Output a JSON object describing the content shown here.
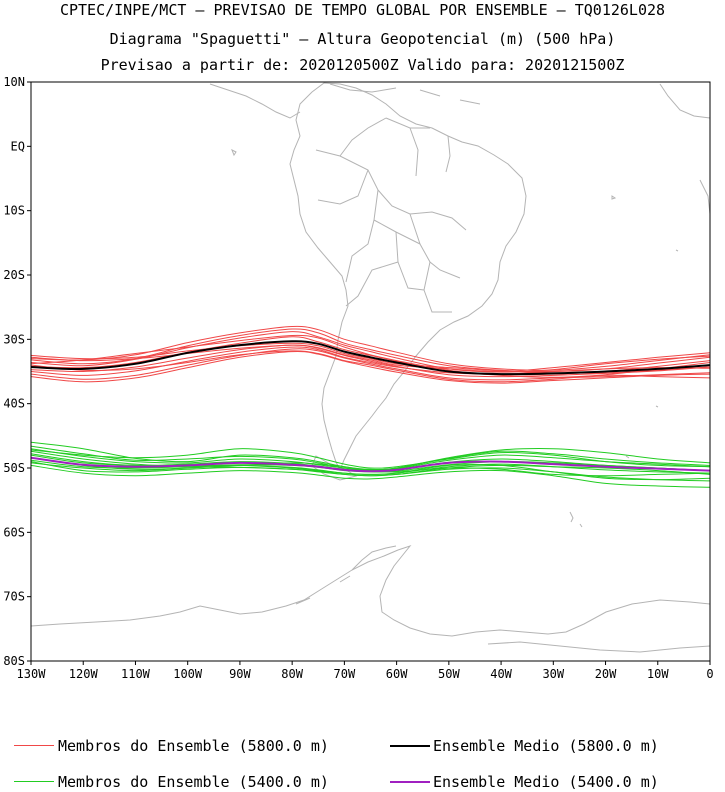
{
  "header": {
    "line1": "CPTEC/INPE/MCT — PREVISAO DE TEMPO GLOBAL POR ENSEMBLE — TQ0126L028",
    "line2": "Diagrama \"Spaguetti\" — Altura Geopotencial (m) (500 hPa)",
    "line3": "Previsao a partir de: 2020120500Z  Valido para: 2020121500Z"
  },
  "map": {
    "lon_range": [
      -130,
      0
    ],
    "lat_range": [
      -80,
      10
    ],
    "lat_ticks": [
      {
        "value": 10,
        "label": "10N"
      },
      {
        "value": 0,
        "label": "EQ"
      },
      {
        "value": -10,
        "label": "10S"
      },
      {
        "value": -20,
        "label": "20S"
      },
      {
        "value": -30,
        "label": "30S"
      },
      {
        "value": -40,
        "label": "40S"
      },
      {
        "value": -50,
        "label": "50S"
      },
      {
        "value": -60,
        "label": "60S"
      },
      {
        "value": -70,
        "label": "70S"
      },
      {
        "value": -80,
        "label": "80S"
      }
    ],
    "lon_ticks": [
      {
        "value": -130,
        "label": "130W"
      },
      {
        "value": -120,
        "label": "120W"
      },
      {
        "value": -110,
        "label": "110W"
      },
      {
        "value": -100,
        "label": "100W"
      },
      {
        "value": -90,
        "label": "90W"
      },
      {
        "value": -80,
        "label": "80W"
      },
      {
        "value": -70,
        "label": "70W"
      },
      {
        "value": -60,
        "label": "60W"
      },
      {
        "value": -50,
        "label": "50W"
      },
      {
        "value": -40,
        "label": "40W"
      },
      {
        "value": -30,
        "label": "30W"
      },
      {
        "value": -20,
        "label": "20W"
      },
      {
        "value": -10,
        "label": "10W"
      },
      {
        "value": 0,
        "label": "0"
      }
    ],
    "colors": {
      "coast": "#b4b4b4",
      "members_5800": "#f04848",
      "mean_5800": "#000000",
      "members_5400": "#22cc22",
      "mean_5400": "#a020c0"
    },
    "contour_lon": [
      -130,
      -120,
      -110,
      -100,
      -90,
      -80,
      -75,
      -70,
      -65,
      -60,
      -50,
      -40,
      -30,
      -20,
      -10,
      0
    ],
    "mean_5800": [
      -34.3,
      -34.6,
      -33.8,
      -32.1,
      -30.9,
      -30.3,
      -30.7,
      -31.9,
      -32.8,
      -33.6,
      -35.0,
      -35.4,
      -35.3,
      -35.0,
      -34.6,
      -34.0
    ],
    "members_5800": [
      [
        -33.0,
        -33.2,
        -32.4,
        -30.5,
        -29.0,
        -28.0,
        -28.5,
        -30.0,
        -31.0,
        -32.0,
        -33.8,
        -34.6,
        -34.8,
        -34.2,
        -33.3,
        -32.4
      ],
      [
        -33.6,
        -34.1,
        -33.1,
        -31.3,
        -29.8,
        -28.8,
        -29.6,
        -30.9,
        -31.9,
        -32.9,
        -34.6,
        -35.1,
        -34.7,
        -33.8,
        -33.1,
        -32.6
      ],
      [
        -34.2,
        -34.4,
        -33.6,
        -32.0,
        -30.6,
        -29.6,
        -30.4,
        -31.6,
        -32.5,
        -33.4,
        -35.0,
        -35.5,
        -35.4,
        -35.0,
        -34.2,
        -33.3
      ],
      [
        -34.7,
        -35.0,
        -34.3,
        -32.9,
        -31.6,
        -30.9,
        -31.4,
        -32.5,
        -33.4,
        -34.2,
        -35.5,
        -35.8,
        -35.6,
        -35.3,
        -34.9,
        -34.3
      ],
      [
        -35.4,
        -36.2,
        -35.6,
        -34.0,
        -32.5,
        -31.5,
        -31.8,
        -32.9,
        -33.8,
        -34.6,
        -36.0,
        -36.3,
        -36.0,
        -35.8,
        -35.5,
        -35.2
      ],
      [
        -32.5,
        -33.0,
        -32.8,
        -31.8,
        -31.0,
        -30.6,
        -31.0,
        -32.2,
        -33.0,
        -33.8,
        -34.4,
        -34.9,
        -35.2,
        -35.2,
        -34.8,
        -34.3
      ],
      [
        -33.8,
        -33.2,
        -32.2,
        -31.2,
        -30.2,
        -29.4,
        -29.8,
        -31.2,
        -32.4,
        -33.3,
        -34.8,
        -35.6,
        -35.9,
        -35.5,
        -34.6,
        -33.6
      ],
      [
        -35.0,
        -35.6,
        -34.9,
        -33.4,
        -32.0,
        -31.2,
        -31.6,
        -32.8,
        -33.6,
        -34.3,
        -35.2,
        -35.4,
        -35.0,
        -34.6,
        -34.4,
        -34.5
      ],
      [
        -34.0,
        -34.8,
        -34.6,
        -33.6,
        -32.4,
        -31.8,
        -32.2,
        -33.3,
        -34.0,
        -34.8,
        -36.2,
        -36.6,
        -36.2,
        -35.6,
        -35.8,
        -36.0
      ],
      [
        -33.2,
        -33.8,
        -33.0,
        -31.0,
        -29.4,
        -28.4,
        -29.0,
        -30.6,
        -31.6,
        -32.5,
        -34.1,
        -34.8,
        -35.0,
        -34.6,
        -33.7,
        -32.8
      ],
      [
        -35.8,
        -36.6,
        -36.0,
        -34.4,
        -32.8,
        -31.9,
        -32.3,
        -33.4,
        -34.3,
        -35.1,
        -36.4,
        -36.8,
        -36.4,
        -36.0,
        -35.6,
        -35.4
      ],
      [
        -32.8,
        -33.3,
        -33.0,
        -32.2,
        -31.4,
        -30.9,
        -31.3,
        -32.4,
        -33.2,
        -34.0,
        -34.6,
        -35.0,
        -34.4,
        -33.6,
        -32.8,
        -32.1
      ]
    ],
    "mean_5400": [
      -48.4,
      -49.5,
      -49.8,
      -49.6,
      -49.2,
      -49.5,
      -49.8,
      -50.3,
      -50.5,
      -50.3,
      -49.2,
      -49.0,
      -49.4,
      -49.8,
      -50.1,
      -50.4
    ],
    "members_5400": [
      [
        -46.0,
        -47.0,
        -48.5,
        -49.0,
        -48.0,
        -48.4,
        -49.0,
        -49.8,
        -50.2,
        -50.0,
        -48.5,
        -47.4,
        -47.8,
        -48.6,
        -49.2,
        -49.6
      ],
      [
        -47.0,
        -48.2,
        -49.0,
        -49.2,
        -48.6,
        -49.0,
        -49.5,
        -50.0,
        -50.3,
        -50.1,
        -48.8,
        -48.0,
        -48.4,
        -49.0,
        -49.4,
        -49.8
      ],
      [
        -47.8,
        -49.0,
        -49.6,
        -49.4,
        -49.0,
        -49.3,
        -49.7,
        -50.2,
        -50.4,
        -50.2,
        -49.1,
        -48.6,
        -49.0,
        -49.6,
        -50.0,
        -50.4
      ],
      [
        -48.4,
        -49.6,
        -50.2,
        -50.0,
        -49.6,
        -49.9,
        -50.3,
        -50.8,
        -51.0,
        -50.8,
        -49.8,
        -49.4,
        -49.8,
        -50.3,
        -50.6,
        -50.8
      ],
      [
        -49.0,
        -50.4,
        -50.6,
        -50.2,
        -49.9,
        -50.2,
        -50.6,
        -51.0,
        -51.2,
        -51.0,
        -50.2,
        -50.0,
        -50.6,
        -51.4,
        -51.8,
        -52.0
      ],
      [
        -49.6,
        -50.8,
        -51.2,
        -50.8,
        -50.4,
        -50.7,
        -51.1,
        -51.6,
        -51.7,
        -51.4,
        -50.6,
        -50.4,
        -51.2,
        -52.4,
        -52.8,
        -53.0
      ],
      [
        -47.2,
        -48.0,
        -48.4,
        -48.0,
        -47.0,
        -47.6,
        -48.4,
        -49.4,
        -50.0,
        -49.8,
        -48.6,
        -47.6,
        -48.0,
        -49.0,
        -49.6,
        -49.8
      ],
      [
        -48.8,
        -49.8,
        -50.0,
        -49.8,
        -49.5,
        -49.6,
        -49.9,
        -50.4,
        -50.6,
        -50.5,
        -49.5,
        -49.0,
        -49.2,
        -49.6,
        -50.0,
        -50.4
      ],
      [
        -46.6,
        -47.8,
        -48.8,
        -48.6,
        -48.2,
        -48.6,
        -49.2,
        -50.0,
        -50.4,
        -50.0,
        -48.4,
        -47.2,
        -47.0,
        -47.6,
        -48.6,
        -49.2
      ],
      [
        -48.0,
        -49.2,
        -49.6,
        -49.6,
        -49.6,
        -50.0,
        -50.4,
        -50.8,
        -51.0,
        -50.8,
        -49.6,
        -49.6,
        -50.6,
        -51.6,
        -51.8,
        -51.6
      ],
      [
        -49.2,
        -50.0,
        -50.4,
        -50.0,
        -49.6,
        -49.2,
        -49.4,
        -49.8,
        -50.4,
        -50.6,
        -50.0,
        -50.2,
        -51.0,
        -51.2,
        -51.0,
        -50.8
      ],
      [
        -47.4,
        -48.6,
        -49.4,
        -49.8,
        -49.9,
        -50.2,
        -50.5,
        -51.0,
        -51.2,
        -51.0,
        -50.0,
        -49.6,
        -49.8,
        -50.0,
        -50.4,
        -51.0
      ]
    ]
  },
  "legend": {
    "members_5800": "Membros do Ensemble (5800.0 m)",
    "mean_5800": "Ensemble Medio (5800.0 m)",
    "members_5400": "Membros do Ensemble (5400.0 m)",
    "mean_5400": "Ensemble Medio (5400.0 m)"
  }
}
